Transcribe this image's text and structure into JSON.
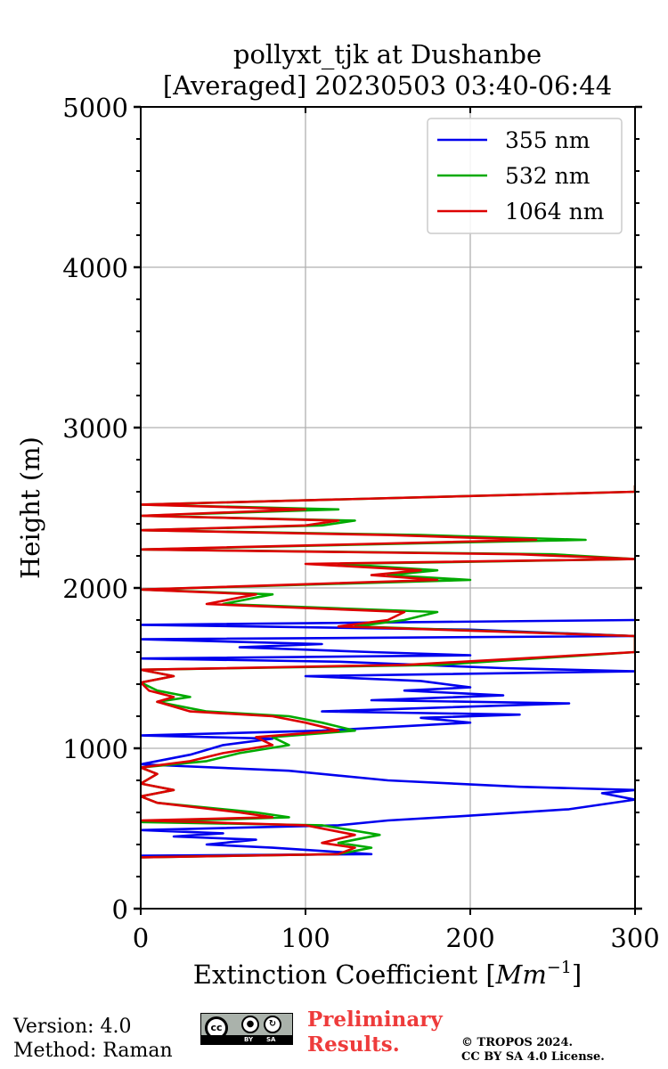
{
  "chart_data": {
    "type": "line",
    "title": "pollyxt_tjk at Dushanbe",
    "subtitle": "[Averaged] 20230503 03:40-06:44",
    "xlabel": "Extinction Coefficient [Mm^-1]",
    "xlabel_main": "Extinction Coefficient [",
    "xlabel_unit": "Mm",
    "xlabel_exp": "−1",
    "xlabel_close": "]",
    "ylabel": "Height (m)",
    "xlim": [
      0,
      300
    ],
    "ylim": [
      0,
      5000
    ],
    "xticks": [
      0,
      100,
      200,
      300
    ],
    "yticks": [
      0,
      1000,
      2000,
      3000,
      4000,
      5000
    ],
    "grid": true,
    "legend_position": "top-right",
    "series": [
      {
        "name": "355 nm",
        "color": "#0000ee",
        "points": [
          [
            0,
            330
          ],
          [
            140,
            340
          ],
          [
            80,
            380
          ],
          [
            40,
            400
          ],
          [
            70,
            430
          ],
          [
            20,
            450
          ],
          [
            50,
            470
          ],
          [
            0,
            490
          ],
          [
            120,
            520
          ],
          [
            150,
            550
          ],
          [
            200,
            580
          ],
          [
            260,
            620
          ],
          [
            300,
            680
          ],
          [
            280,
            720
          ],
          [
            300,
            740
          ],
          [
            230,
            760
          ],
          [
            150,
            800
          ],
          [
            90,
            860
          ],
          [
            0,
            900
          ],
          [
            30,
            960
          ],
          [
            50,
            1020
          ],
          [
            80,
            1060
          ],
          [
            0,
            1080
          ],
          [
            110,
            1110
          ],
          [
            200,
            1160
          ],
          [
            170,
            1190
          ],
          [
            230,
            1210
          ],
          [
            110,
            1230
          ],
          [
            260,
            1280
          ],
          [
            140,
            1300
          ],
          [
            220,
            1330
          ],
          [
            160,
            1360
          ],
          [
            200,
            1380
          ],
          [
            170,
            1420
          ],
          [
            100,
            1450
          ],
          [
            300,
            1480
          ],
          [
            220,
            1500
          ],
          [
            120,
            1540
          ],
          [
            0,
            1560
          ],
          [
            200,
            1580
          ],
          [
            140,
            1600
          ],
          [
            60,
            1630
          ],
          [
            110,
            1650
          ],
          [
            0,
            1680
          ],
          [
            300,
            1700
          ],
          [
            200,
            1740
          ],
          [
            0,
            1770
          ],
          [
            300,
            1800
          ]
        ]
      },
      {
        "name": "532 nm",
        "color": "#00aa00",
        "points": [
          [
            0,
            320
          ],
          [
            120,
            340
          ],
          [
            140,
            380
          ],
          [
            120,
            410
          ],
          [
            145,
            460
          ],
          [
            110,
            520
          ],
          [
            0,
            540
          ],
          [
            90,
            570
          ],
          [
            70,
            600
          ],
          [
            10,
            660
          ],
          [
            0,
            700
          ],
          [
            20,
            740
          ],
          [
            0,
            780
          ],
          [
            10,
            840
          ],
          [
            0,
            880
          ],
          [
            40,
            920
          ],
          [
            60,
            970
          ],
          [
            90,
            1020
          ],
          [
            80,
            1070
          ],
          [
            130,
            1110
          ],
          [
            110,
            1160
          ],
          [
            90,
            1200
          ],
          [
            40,
            1230
          ],
          [
            10,
            1290
          ],
          [
            30,
            1320
          ],
          [
            10,
            1360
          ],
          [
            0,
            1410
          ],
          [
            20,
            1450
          ],
          [
            0,
            1490
          ],
          [
            180,
            1520
          ],
          [
            300,
            1600
          ],
          [
            300,
            1700
          ],
          [
            130,
            1760
          ],
          [
            160,
            1800
          ],
          [
            180,
            1850
          ],
          [
            50,
            1900
          ],
          [
            80,
            1960
          ],
          [
            0,
            1990
          ],
          [
            200,
            2050
          ],
          [
            150,
            2080
          ],
          [
            180,
            2110
          ],
          [
            120,
            2150
          ],
          [
            300,
            2180
          ],
          [
            250,
            2210
          ],
          [
            0,
            2240
          ],
          [
            130,
            2270
          ],
          [
            270,
            2300
          ],
          [
            170,
            2330
          ],
          [
            0,
            2360
          ],
          [
            110,
            2390
          ],
          [
            130,
            2420
          ],
          [
            0,
            2450
          ],
          [
            120,
            2490
          ],
          [
            0,
            2520
          ],
          [
            300,
            2600
          ],
          [
            300,
            2640
          ]
        ]
      },
      {
        "name": "1064 nm",
        "color": "#dd0000",
        "points": [
          [
            0,
            320
          ],
          [
            120,
            340
          ],
          [
            130,
            380
          ],
          [
            110,
            410
          ],
          [
            130,
            460
          ],
          [
            100,
            520
          ],
          [
            0,
            550
          ],
          [
            80,
            570
          ],
          [
            60,
            600
          ],
          [
            10,
            660
          ],
          [
            0,
            700
          ],
          [
            20,
            740
          ],
          [
            0,
            780
          ],
          [
            10,
            840
          ],
          [
            0,
            880
          ],
          [
            30,
            920
          ],
          [
            50,
            970
          ],
          [
            80,
            1020
          ],
          [
            70,
            1070
          ],
          [
            120,
            1110
          ],
          [
            100,
            1160
          ],
          [
            80,
            1200
          ],
          [
            30,
            1230
          ],
          [
            10,
            1290
          ],
          [
            20,
            1320
          ],
          [
            5,
            1360
          ],
          [
            0,
            1410
          ],
          [
            20,
            1450
          ],
          [
            0,
            1490
          ],
          [
            160,
            1520
          ],
          [
            300,
            1600
          ],
          [
            300,
            1700
          ],
          [
            120,
            1760
          ],
          [
            150,
            1800
          ],
          [
            160,
            1850
          ],
          [
            40,
            1900
          ],
          [
            70,
            1960
          ],
          [
            0,
            1990
          ],
          [
            180,
            2050
          ],
          [
            140,
            2080
          ],
          [
            170,
            2110
          ],
          [
            100,
            2150
          ],
          [
            300,
            2180
          ],
          [
            230,
            2210
          ],
          [
            0,
            2240
          ],
          [
            120,
            2270
          ],
          [
            240,
            2300
          ],
          [
            150,
            2330
          ],
          [
            0,
            2360
          ],
          [
            100,
            2390
          ],
          [
            120,
            2420
          ],
          [
            0,
            2450
          ],
          [
            100,
            2490
          ],
          [
            0,
            2520
          ],
          [
            300,
            2600
          ],
          [
            300,
            2640
          ]
        ]
      }
    ]
  },
  "footer": {
    "version": "Version: 4.0",
    "method": "Method: Raman",
    "prelim_line1": "Preliminary",
    "prelim_line2": "Results.",
    "copyright_line1": "© TROPOS 2024.",
    "copyright_line2": "CC BY SA 4.0 License.",
    "license_badge": {
      "cc": "cc",
      "by": "BY",
      "sa": "SA"
    }
  }
}
